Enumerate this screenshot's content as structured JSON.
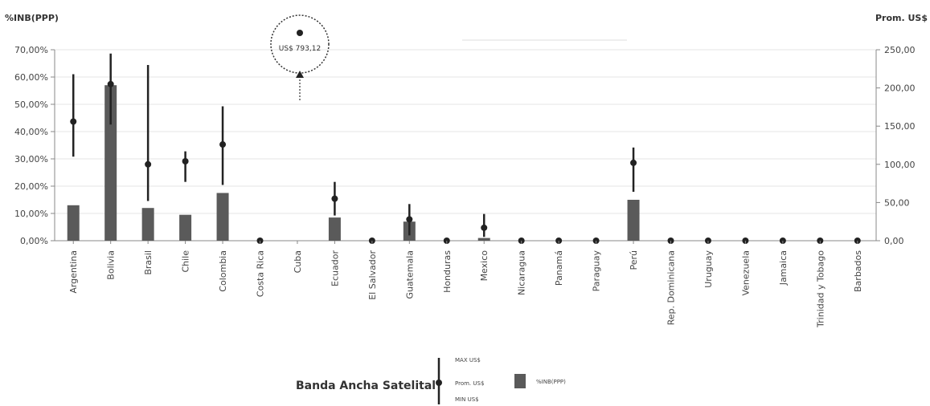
{
  "chart_data": {
    "type": "bar",
    "left_axis_label": "%INB(PPP)",
    "right_axis_label": "Prom. US$",
    "left_ticks": [
      "0,00%",
      "10,00%",
      "20,00%",
      "30,00%",
      "40,00%",
      "50,00%",
      "60,00%",
      "70,00%"
    ],
    "right_ticks": [
      "0,00",
      "50,00",
      "100,00",
      "150,00",
      "200,00",
      "250,00"
    ],
    "ylim_left": [
      0,
      70
    ],
    "ylim_right": [
      0,
      250
    ],
    "grid": true,
    "categories": [
      "Argentina",
      "Bolivia",
      "Brasil",
      "Chile",
      "Colombia",
      "Costa Rica",
      "Cuba",
      "Ecuador",
      "El Salvador",
      "Guatemala",
      "Honduras",
      "Mexico",
      "Nicaragua",
      "Panamá",
      "Paraguay",
      "Perú",
      "Rep. Dominicana",
      "Uruguay",
      "Venezuela",
      "Jamaica",
      "Trinidad y Tobago",
      "Barbados"
    ],
    "series": [
      {
        "name": "%INB(PPP)",
        "type": "bar",
        "axis": "left",
        "values": [
          13,
          57,
          12,
          9.5,
          17.5,
          0,
          null,
          8.5,
          0,
          7,
          0,
          1,
          0,
          0,
          0,
          15,
          0,
          0,
          0,
          0,
          0,
          0
        ]
      },
      {
        "name": "Prom. US$",
        "type": "range_marker",
        "axis": "right",
        "avg": [
          156,
          205,
          100,
          104,
          126,
          0,
          null,
          55,
          0,
          28,
          0,
          17,
          0,
          0,
          0,
          102,
          0,
          0,
          0,
          0,
          0,
          0
        ],
        "min": [
          110,
          152,
          52,
          77,
          73,
          null,
          null,
          33,
          null,
          7,
          null,
          5,
          null,
          null,
          null,
          64,
          null,
          null,
          null,
          null,
          null,
          null
        ],
        "max": [
          218,
          245,
          230,
          117,
          176,
          null,
          null,
          77,
          null,
          48,
          null,
          35,
          null,
          null,
          null,
          122,
          null,
          null,
          null,
          null,
          null,
          null
        ]
      }
    ],
    "annotation": {
      "category": "Cuba",
      "text": "US$ 793,12"
    },
    "legend": {
      "title": "Banda Ancha Satelital",
      "max_label": "MAX US$",
      "avg_label": "Prom. US$",
      "min_label": "MIN US$",
      "bar_label": "%INB(PPP)",
      "position": "bottom"
    },
    "colors": {
      "bar": "#5a5a5a",
      "marker": "#222222",
      "grid": "#e6e6e6",
      "axis": "#888888"
    }
  }
}
